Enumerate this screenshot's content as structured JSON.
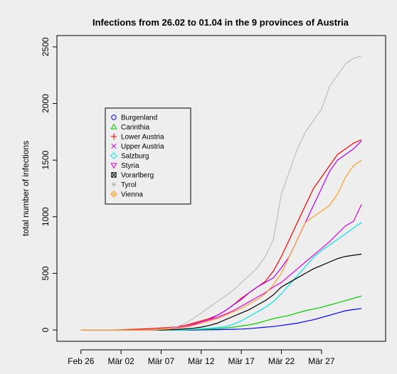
{
  "chart_data": {
    "type": "line",
    "title": "Infections from 26.02 to 01.04 in the 9 provinces of Austria",
    "xlabel": "",
    "ylabel": "total number of infections",
    "x_tick_labels": [
      "Feb 26",
      "Mär 02",
      "Mär 07",
      "Mär 12",
      "Mär 17",
      "Mär 22",
      "Mär 27"
    ],
    "x_tick_positions": [
      0,
      5,
      10,
      15,
      20,
      25,
      30
    ],
    "x_range": [
      -3,
      38
    ],
    "y_ticks": [
      0,
      500,
      1000,
      1500,
      2000,
      2500
    ],
    "ylim": [
      -100,
      2600
    ],
    "grid": false,
    "legend_position": "top-left",
    "days": [
      0,
      1,
      2,
      3,
      4,
      5,
      6,
      7,
      8,
      9,
      10,
      11,
      12,
      13,
      14,
      15,
      16,
      17,
      18,
      19,
      20,
      21,
      22,
      23,
      24,
      25,
      26,
      27,
      28,
      29,
      30,
      31,
      32,
      33,
      34,
      35
    ],
    "series": [
      {
        "name": "Burgenland",
        "color": "#0000ff",
        "marker": "o",
        "values": [
          0,
          0,
          0,
          0,
          0,
          0,
          0,
          0,
          0,
          0,
          0,
          0,
          0,
          0,
          0,
          1,
          2,
          3,
          4,
          6,
          8,
          12,
          18,
          25,
          30,
          40,
          50,
          60,
          75,
          90,
          110,
          130,
          150,
          170,
          180,
          190
        ]
      },
      {
        "name": "Carinthia",
        "color": "#00cc00",
        "marker": "triangle",
        "values": [
          0,
          0,
          0,
          0,
          0,
          0,
          0,
          0,
          0,
          0,
          0,
          0,
          0,
          2,
          4,
          6,
          8,
          12,
          18,
          25,
          35,
          45,
          60,
          80,
          100,
          115,
          130,
          150,
          170,
          185,
          200,
          220,
          240,
          260,
          280,
          300
        ]
      },
      {
        "name": "Lower Austria",
        "color": "#ff0000",
        "marker": "plus",
        "values": [
          0,
          0,
          0,
          0,
          0,
          2,
          4,
          7,
          10,
          13,
          17,
          22,
          30,
          40,
          60,
          80,
          100,
          130,
          170,
          220,
          280,
          330,
          380,
          430,
          520,
          650,
          800,
          950,
          1100,
          1250,
          1350,
          1450,
          1550,
          1600,
          1650,
          1680
        ]
      },
      {
        "name": "Upper Austria",
        "color": "#b700ff",
        "marker": "x",
        "values": [
          0,
          0,
          0,
          0,
          0,
          0,
          0,
          0,
          0,
          2,
          5,
          10,
          20,
          30,
          45,
          70,
          90,
          130,
          170,
          220,
          270,
          330,
          380,
          420,
          460,
          550,
          650,
          800,
          950,
          1100,
          1250,
          1400,
          1500,
          1550,
          1600,
          1670
        ]
      },
      {
        "name": "Salzburg",
        "color": "#00e5ee",
        "marker": "diamond",
        "values": [
          0,
          0,
          0,
          0,
          0,
          0,
          0,
          0,
          0,
          0,
          0,
          0,
          0,
          2,
          5,
          10,
          15,
          20,
          30,
          50,
          80,
          120,
          160,
          200,
          250,
          320,
          400,
          480,
          560,
          640,
          700,
          750,
          800,
          850,
          900,
          950
        ]
      },
      {
        "name": "Styria",
        "color": "#e000e0",
        "marker": "triangle-down",
        "values": [
          0,
          0,
          0,
          0,
          0,
          0,
          0,
          0,
          0,
          2,
          5,
          8,
          15,
          30,
          50,
          70,
          90,
          110,
          140,
          170,
          210,
          250,
          290,
          330,
          380,
          420,
          480,
          540,
          600,
          660,
          720,
          780,
          850,
          920,
          960,
          1110
        ]
      },
      {
        "name": "Vorarlberg",
        "color": "#000000",
        "marker": "boxed-x",
        "values": [
          0,
          0,
          0,
          0,
          0,
          0,
          0,
          0,
          0,
          0,
          0,
          2,
          5,
          10,
          15,
          25,
          40,
          60,
          90,
          120,
          150,
          180,
          220,
          260,
          310,
          380,
          420,
          460,
          500,
          540,
          570,
          600,
          630,
          650,
          660,
          670
        ]
      },
      {
        "name": "Tyrol",
        "color": "#bebebe",
        "marker": "asterisk",
        "values": [
          0,
          0,
          0,
          0,
          0,
          0,
          0,
          0,
          0,
          0,
          5,
          15,
          30,
          60,
          100,
          150,
          200,
          250,
          300,
          350,
          420,
          480,
          550,
          650,
          800,
          1200,
          1400,
          1600,
          1750,
          1850,
          1950,
          2150,
          2250,
          2350,
          2400,
          2420
        ]
      },
      {
        "name": "Vienna",
        "color": "#ff9f2a",
        "marker": "diamond-plus",
        "values": [
          0,
          0,
          0,
          0,
          0,
          0,
          0,
          0,
          0,
          2,
          4,
          8,
          15,
          25,
          40,
          60,
          80,
          100,
          130,
          160,
          190,
          230,
          270,
          320,
          400,
          500,
          650,
          800,
          950,
          1000,
          1050,
          1100,
          1200,
          1350,
          1450,
          1500
        ]
      }
    ]
  }
}
